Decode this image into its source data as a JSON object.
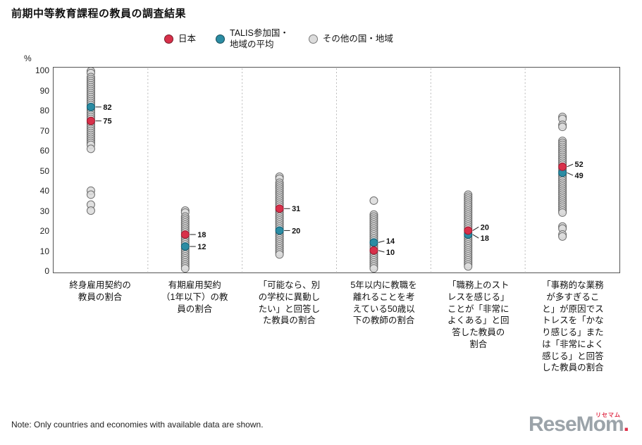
{
  "title": "前期中等教育課程の教員の調査結果",
  "legend": {
    "japan": "日本",
    "talis": "TALIS参加国・\n地域の平均",
    "others": "その他の国・地域"
  },
  "y_axis": {
    "unit": "%",
    "ticks": [
      100,
      90,
      80,
      70,
      60,
      50,
      40,
      30,
      20,
      10,
      0
    ]
  },
  "note": "Note: Only countries and economies with available data are shown.",
  "logo": {
    "text": "ReseMom",
    "period": ".",
    "kana": "リセマム"
  },
  "chart_data": {
    "type": "scatter",
    "title": "前期中等教育課程の教員の調査結果",
    "ylabel": "%",
    "ylim": [
      0,
      100
    ],
    "grid": "vertical-dashed-separators",
    "legend_position": "top",
    "legend_entries": [
      "日本",
      "TALIS参加国・地域の平均",
      "その他の国・地域"
    ],
    "colors": {
      "japan": "#d8304a",
      "talis": "#2b8ca3",
      "others": "#dcdcdc"
    },
    "categories": [
      {
        "label": "終身雇用契約の\n教員の割合",
        "japan": 75,
        "talis": 82,
        "others": [
          100,
          99,
          97,
          96,
          95,
          94,
          93,
          92,
          91,
          90,
          89,
          88,
          87,
          86,
          85,
          84,
          83,
          81,
          80,
          79,
          78,
          77,
          76,
          74,
          73,
          72,
          71,
          70,
          69,
          68,
          67,
          66,
          65,
          64,
          63,
          61,
          40,
          38,
          33,
          30
        ]
      },
      {
        "label": "有期雇用契約\n（1年以下）の教\n員の割合",
        "japan": 18,
        "talis": 12,
        "others": [
          30,
          29,
          27,
          26,
          25,
          24,
          23,
          22,
          21,
          20,
          19,
          17,
          16,
          15,
          14,
          13,
          11,
          10,
          9,
          8,
          7,
          6,
          5,
          4,
          3,
          2,
          1
        ]
      },
      {
        "label": "「可能なら、別\nの学校に異動し\nたい」と回答し\nた教員の割合",
        "japan": 31,
        "talis": 20,
        "others": [
          47,
          46,
          44,
          43,
          42,
          41,
          40,
          39,
          38,
          37,
          36,
          35,
          34,
          33,
          32,
          30,
          29,
          28,
          27,
          26,
          25,
          24,
          23,
          22,
          21,
          19,
          18,
          17,
          16,
          15,
          14,
          13,
          12,
          11,
          10,
          9,
          8
        ]
      },
      {
        "label": "5年以内に教職を\n離れることを考\nえている50歳以\n下の教師の割合",
        "japan": 10,
        "talis": 14,
        "others": [
          35,
          28,
          27,
          26,
          25,
          24,
          23,
          22,
          21,
          20,
          19,
          18,
          17,
          16,
          15,
          13,
          12,
          11,
          9,
          8,
          7,
          6,
          5,
          4,
          3,
          2,
          1
        ]
      },
      {
        "label": "「職務上のスト\nレスを感じる」\nことが「非常に\nよくある」と回\n答した教員の\n割合",
        "japan": 20,
        "talis": 18,
        "others": [
          38,
          37,
          36,
          35,
          34,
          33,
          32,
          31,
          30,
          29,
          28,
          27,
          26,
          25,
          24,
          23,
          22,
          21,
          19,
          17,
          16,
          15,
          14,
          13,
          12,
          11,
          10,
          9,
          8,
          7,
          6,
          5,
          4,
          3,
          2
        ]
      },
      {
        "label": "「事務的な業務\nが多すぎるこ\nと」が原因でス\nトレスを「かな\nり感じる」また\nは「非常によく\n感じる」と回答\nした教員の割合",
        "japan": 52,
        "talis": 49,
        "others": [
          77,
          76,
          73,
          72,
          65,
          64,
          63,
          62,
          61,
          60,
          59,
          58,
          57,
          56,
          55,
          54,
          53,
          51,
          50,
          48,
          47,
          46,
          45,
          44,
          43,
          42,
          41,
          40,
          39,
          38,
          37,
          36,
          35,
          34,
          33,
          32,
          31,
          30,
          29,
          22,
          21,
          18,
          17
        ]
      }
    ]
  }
}
